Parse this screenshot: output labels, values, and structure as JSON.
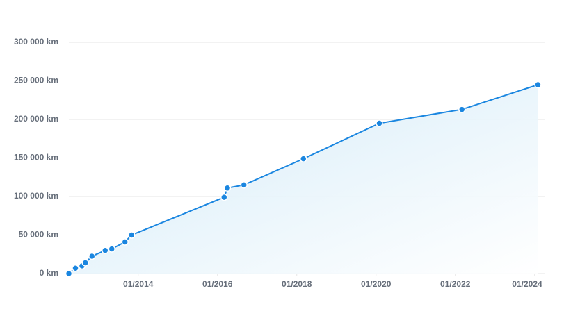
{
  "chart_data": {
    "type": "area-line",
    "color": "#1a86e0",
    "x": [
      "2012-04",
      "2012-06",
      "2012-08",
      "2012-09",
      "2012-11",
      "2013-03",
      "2013-05",
      "2013-09",
      "2013-11",
      "2016-03",
      "2016-04",
      "2016-09",
      "2018-03",
      "2020-02",
      "2022-03",
      "2024-02"
    ],
    "values": [
      0,
      7000,
      10000,
      14000,
      22500,
      30000,
      32000,
      41000,
      50000,
      99000,
      111000,
      115000,
      149000,
      195000,
      213000,
      245000
    ],
    "xlim": [
      "2012-04",
      "2024-04"
    ],
    "xticks": [
      {
        "value": "2014-01",
        "label": "01/2014"
      },
      {
        "value": "2016-01",
        "label": "01/2016"
      },
      {
        "value": "2018-01",
        "label": "01/2018"
      },
      {
        "value": "2020-01",
        "label": "01/2020"
      },
      {
        "value": "2022-01",
        "label": "01/2022"
      },
      {
        "value": "2024-01",
        "label": "01/2024"
      }
    ],
    "ylim": [
      0,
      300000
    ],
    "yticks": [
      {
        "value": 0,
        "label": "0 km"
      },
      {
        "value": 50000,
        "label": "50 000 km"
      },
      {
        "value": 100000,
        "label": "100 000 km"
      },
      {
        "value": 150000,
        "label": "150 000 km"
      },
      {
        "value": 200000,
        "label": "200 000 km"
      },
      {
        "value": 250000,
        "label": "250 000 km"
      },
      {
        "value": 300000,
        "label": "300 000 km"
      }
    ],
    "grid": true
  }
}
